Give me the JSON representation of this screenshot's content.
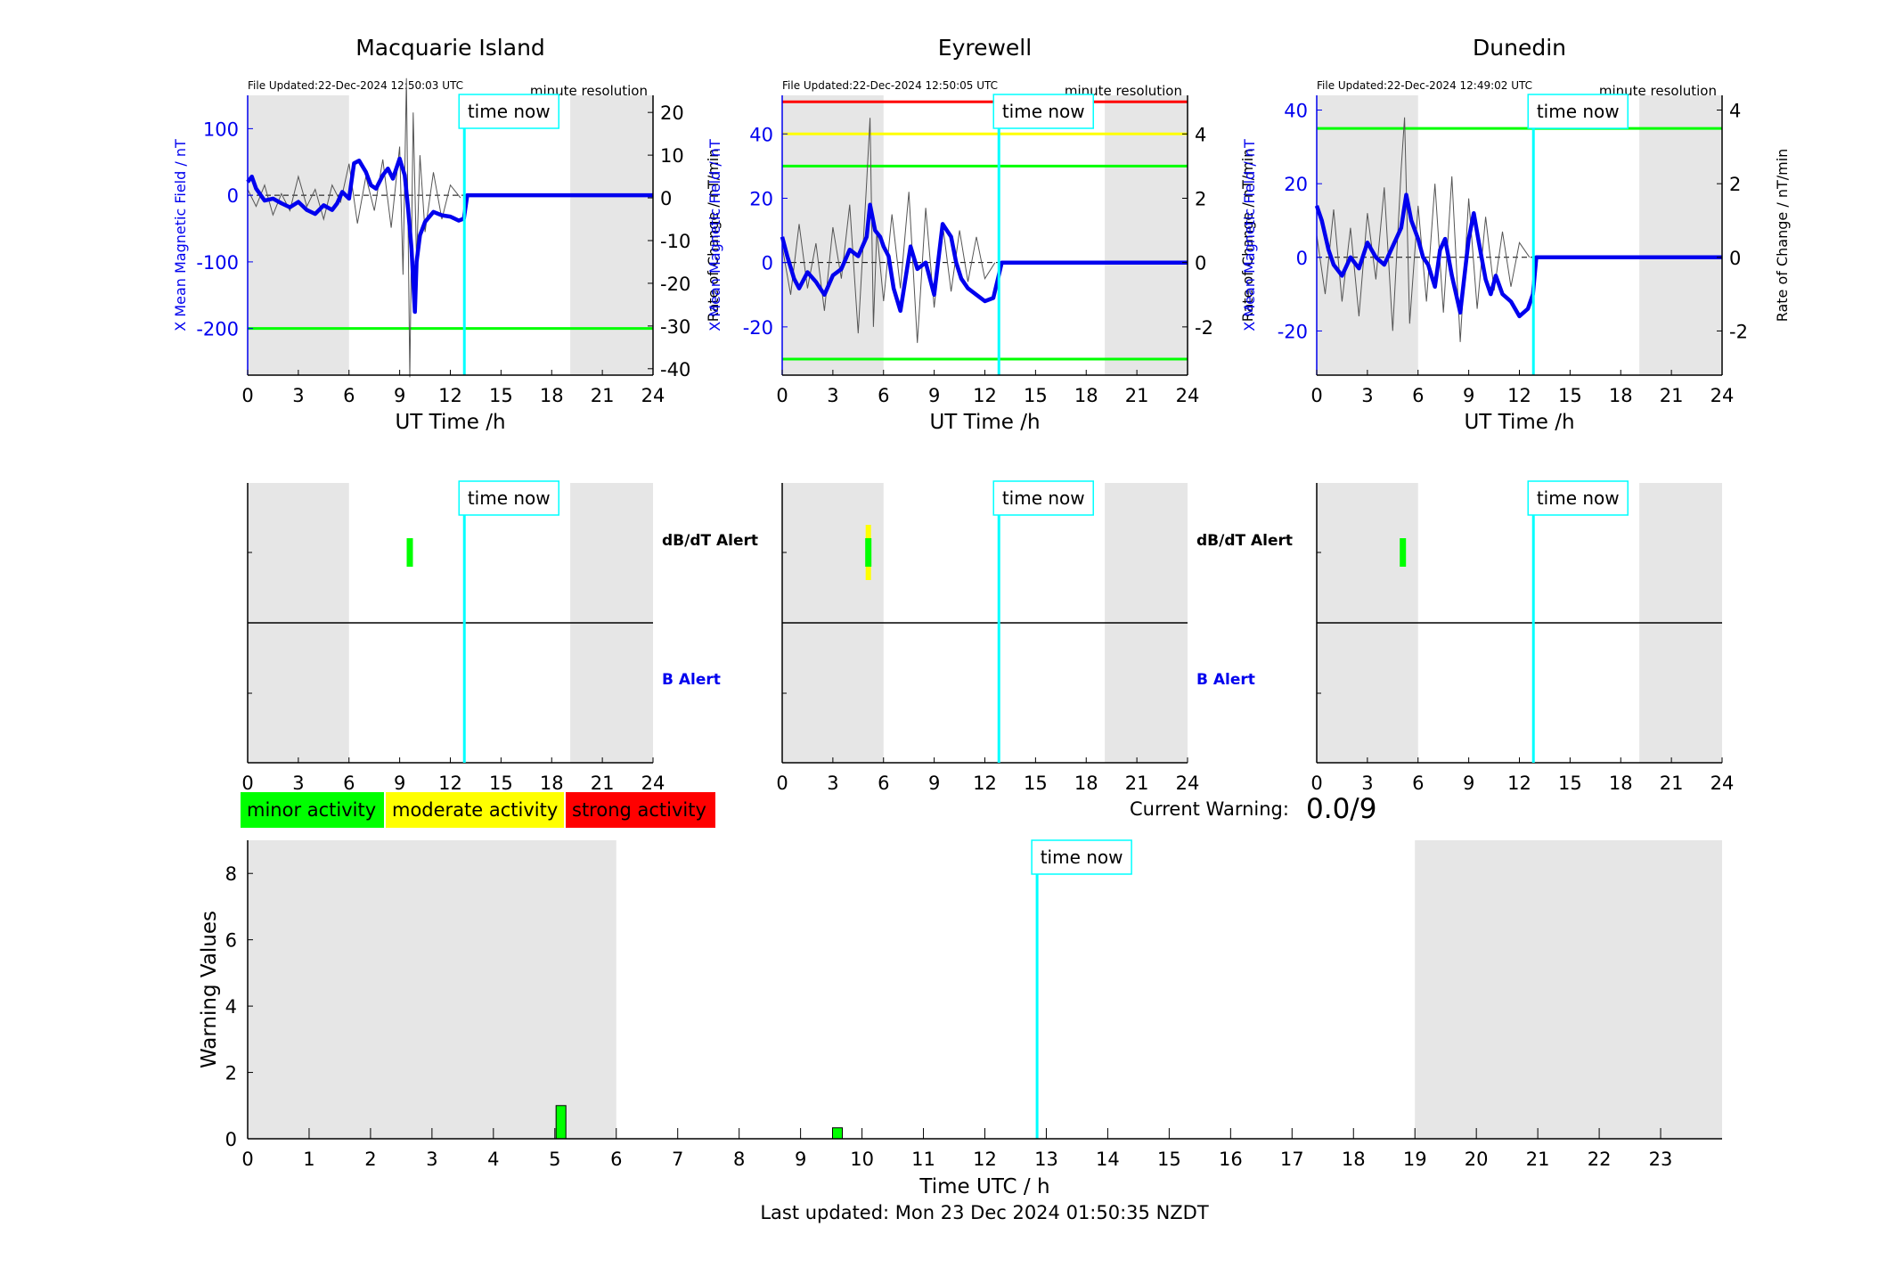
{
  "colors": {
    "blue": "#0000ee",
    "cyan": "#00ffff",
    "green": "#00ff00",
    "yellow": "#ffff00",
    "red": "#ff0000",
    "shade": "#e6e6e6"
  },
  "labels": {
    "time_now": "time now",
    "file_updated_prefix": "File Updated:",
    "minute_resolution": "minute resolution",
    "left_axis_label": "X Mean Magnetic Field / nT",
    "right_axis_label": "Rate of Change / nT/min",
    "x_axis_label": "UT Time /h",
    "dbdt_alert": "dB/dT Alert",
    "b_alert": "B Alert",
    "current_warning_label": "Current Warning:",
    "current_warning_value": "0.0/9",
    "last_updated": "Last updated: Mon 23 Dec 2024 01:50:35 NZDT"
  },
  "legend": [
    {
      "label": "minor activity",
      "color": "#00ff00"
    },
    {
      "label": "moderate activity",
      "color": "#ffff00"
    },
    {
      "label": "strong activity",
      "color": "#ff0000"
    }
  ],
  "chart_data": [
    {
      "type": "line",
      "title": "Macquarie Island",
      "file_updated": "22-Dec-2024 12:50:03 UTC",
      "xlabel": "UT Time /h",
      "ylabel": "X Mean Magnetic Field / nT",
      "y2label": "Rate of Change / nT/min",
      "xlim": [
        0,
        24
      ],
      "ylim": [
        -270,
        150
      ],
      "y2lim": [
        -41.5,
        24
      ],
      "yticks": [
        -200,
        -100,
        0,
        100
      ],
      "y2ticks": [
        -40,
        -30,
        -20,
        -10,
        0,
        10,
        20
      ],
      "xticks": [
        0,
        3,
        6,
        9,
        12,
        15,
        18,
        21,
        24
      ],
      "time_now": 12.83,
      "shaded_hours": [
        [
          0,
          6
        ],
        [
          19.1,
          24
        ]
      ],
      "threshold_lines": [
        {
          "value": -200,
          "color": "#00ff00"
        }
      ],
      "series": [
        {
          "name": "X Mean Magnetic Field",
          "axis": "left",
          "color": "#0000ee",
          "x": [
            0,
            0.25,
            0.5,
            1,
            1.5,
            2,
            2.5,
            3,
            3.5,
            4,
            4.5,
            5,
            5.3,
            5.6,
            6,
            6.3,
            6.6,
            7,
            7.3,
            7.6,
            8,
            8.3,
            8.6,
            9,
            9.3,
            9.5,
            9.7,
            9.9,
            10,
            10.2,
            10.5,
            11,
            11.5,
            12,
            12.5,
            12.8,
            13,
            16,
            20,
            24
          ],
          "values": [
            20,
            28,
            10,
            -8,
            -5,
            -12,
            -18,
            -10,
            -22,
            -28,
            -15,
            -22,
            -12,
            5,
            -5,
            48,
            52,
            35,
            15,
            10,
            30,
            40,
            25,
            55,
            30,
            -20,
            -80,
            -175,
            -100,
            -60,
            -40,
            -25,
            -30,
            -32,
            -38,
            -35,
            0,
            0,
            0,
            0
          ]
        },
        {
          "name": "Rate of Change",
          "axis": "right",
          "color": "#555555",
          "x": [
            0,
            0.5,
            1,
            1.5,
            2,
            2.5,
            3,
            3.5,
            4,
            4.5,
            5,
            5.5,
            6,
            6.5,
            7,
            7.5,
            8,
            8.5,
            9,
            9.2,
            9.4,
            9.6,
            9.8,
            10,
            10.2,
            10.5,
            11,
            11.5,
            12,
            12.6
          ],
          "values": [
            2,
            -2,
            3,
            -4,
            1,
            -3,
            5,
            -2,
            2,
            -5,
            3,
            -1,
            8,
            -6,
            5,
            -3,
            9,
            -7,
            12,
            -18,
            28,
            -42,
            20,
            -15,
            10,
            -8,
            6,
            -5,
            3,
            0
          ]
        }
      ],
      "alerts": {
        "dbdt": [
          {
            "start": 9.5,
            "end": 9.8,
            "color": "#00ff00"
          }
        ],
        "b": []
      }
    },
    {
      "type": "line",
      "title": "Eyrewell",
      "file_updated": "22-Dec-2024 12:50:05 UTC",
      "xlabel": "UT Time /h",
      "ylabel": "X Mean Magnetic Field / nT",
      "y2label": "Rate of Change / nT/min",
      "xlim": [
        0,
        24
      ],
      "ylim": [
        -35,
        52
      ],
      "y2lim": [
        -3.5,
        5.2
      ],
      "yticks": [
        -20,
        0,
        20,
        40
      ],
      "y2ticks": [
        -2,
        0,
        2,
        4
      ],
      "xticks": [
        0,
        3,
        6,
        9,
        12,
        15,
        18,
        21,
        24
      ],
      "time_now": 12.83,
      "shaded_hours": [
        [
          0,
          6
        ],
        [
          19.1,
          24
        ]
      ],
      "threshold_lines": [
        {
          "value": 50,
          "color": "#ff0000"
        },
        {
          "value": 40,
          "color": "#ffff00"
        },
        {
          "value": 30,
          "color": "#00ff00"
        },
        {
          "value": -30,
          "color": "#00ff00"
        }
      ],
      "series": [
        {
          "name": "X Mean Magnetic Field",
          "axis": "left",
          "color": "#0000ee",
          "x": [
            0,
            0.3,
            0.7,
            1,
            1.5,
            2,
            2.5,
            3,
            3.5,
            4,
            4.5,
            5,
            5.2,
            5.5,
            5.8,
            6,
            6.3,
            6.6,
            7,
            7.3,
            7.6,
            8,
            8.5,
            9,
            9.5,
            10,
            10.3,
            10.6,
            11,
            11.5,
            12,
            12.5,
            13,
            16,
            20,
            24
          ],
          "values": [
            8,
            2,
            -5,
            -8,
            -3,
            -6,
            -10,
            -4,
            -2,
            4,
            2,
            8,
            18,
            10,
            8,
            5,
            2,
            -8,
            -15,
            -5,
            5,
            -2,
            0,
            -10,
            12,
            8,
            0,
            -5,
            -8,
            -10,
            -12,
            -11,
            0,
            0,
            0,
            0
          ]
        },
        {
          "name": "Rate of Change",
          "axis": "right",
          "color": "#555555",
          "x": [
            0,
            0.5,
            1,
            1.5,
            2,
            2.5,
            3,
            3.5,
            4,
            4.5,
            5,
            5.2,
            5.4,
            5.6,
            6,
            6.5,
            7,
            7.5,
            8,
            8.5,
            9,
            9.5,
            10,
            10.5,
            11,
            11.5,
            12,
            12.6
          ],
          "values": [
            0.5,
            -1,
            1.2,
            -0.8,
            0.6,
            -1.5,
            1.1,
            -0.5,
            1.8,
            -2.2,
            2.5,
            4.5,
            -2,
            1,
            -1.2,
            1.5,
            -0.8,
            2.2,
            -2.5,
            1.7,
            -1.4,
            1.2,
            -0.9,
            1,
            -0.6,
            0.8,
            -0.5,
            0
          ]
        }
      ],
      "alerts": {
        "dbdt": [
          {
            "start": 5.0,
            "end": 5.3,
            "color": "#ffff00",
            "level": "moderate"
          },
          {
            "start": 5.0,
            "end": 5.3,
            "color": "#00ff00",
            "level": "minor"
          }
        ],
        "b": []
      }
    },
    {
      "type": "line",
      "title": "Dunedin",
      "file_updated": "22-Dec-2024 12:49:02 UTC",
      "xlabel": "UT Time /h",
      "ylabel": "X Mean Magnetic Field / nT",
      "y2label": "Rate of Change / nT/min",
      "xlim": [
        0,
        24
      ],
      "ylim": [
        -32,
        44
      ],
      "y2lim": [
        -3.2,
        4.4
      ],
      "yticks": [
        -20,
        0,
        20,
        40
      ],
      "y2ticks": [
        -2,
        0,
        2,
        4
      ],
      "xticks": [
        0,
        3,
        6,
        9,
        12,
        15,
        18,
        21,
        24
      ],
      "time_now": 12.83,
      "shaded_hours": [
        [
          0,
          6
        ],
        [
          19.1,
          24
        ]
      ],
      "threshold_lines": [
        {
          "value": 35,
          "color": "#00ff00"
        }
      ],
      "series": [
        {
          "name": "X Mean Magnetic Field",
          "axis": "left",
          "color": "#0000ee",
          "x": [
            0,
            0.3,
            0.7,
            1,
            1.5,
            2,
            2.5,
            3,
            3.5,
            4,
            4.5,
            5,
            5.3,
            5.6,
            6,
            6.3,
            6.6,
            7,
            7.3,
            7.6,
            8,
            8.5,
            9,
            9.3,
            9.6,
            10,
            10.3,
            10.6,
            11,
            11.5,
            12,
            12.5,
            12.8,
            13,
            16,
            20,
            24
          ],
          "values": [
            14,
            10,
            2,
            -2,
            -5,
            0,
            -3,
            4,
            0,
            -2,
            3,
            8,
            17,
            10,
            5,
            0,
            -2,
            -8,
            2,
            5,
            -5,
            -15,
            5,
            12,
            4,
            -6,
            -10,
            -5,
            -10,
            -12,
            -16,
            -14,
            -10,
            0,
            0,
            0,
            0
          ]
        },
        {
          "name": "Rate of Change",
          "axis": "right",
          "color": "#555555",
          "x": [
            0,
            0.5,
            1,
            1.5,
            2,
            2.5,
            3,
            3.5,
            4,
            4.5,
            5,
            5.2,
            5.5,
            6,
            6.5,
            7,
            7.5,
            8,
            8.5,
            9,
            9.5,
            10,
            10.5,
            11,
            11.5,
            12,
            12.6
          ],
          "values": [
            0.6,
            -1,
            1.3,
            -1.2,
            0.8,
            -1.6,
            1.2,
            -0.6,
            1.9,
            -2,
            2.4,
            3.8,
            -1.8,
            1.4,
            -1.2,
            2,
            -1.5,
            2.2,
            -2.3,
            1.6,
            -1.4,
            1.1,
            -0.9,
            0.7,
            -0.8,
            0.4,
            0
          ]
        }
      ],
      "alerts": {
        "dbdt": [
          {
            "start": 5.0,
            "end": 5.3,
            "color": "#00ff00"
          }
        ],
        "b": []
      }
    },
    {
      "type": "bar",
      "title": "",
      "xlabel": "Time UTC / h",
      "ylabel": "Warning Values",
      "xlim": [
        0,
        24
      ],
      "ylim": [
        0,
        9
      ],
      "yticks": [
        0,
        2,
        4,
        6,
        8
      ],
      "xticks": [
        0,
        1,
        2,
        3,
        4,
        5,
        6,
        7,
        8,
        9,
        10,
        11,
        12,
        13,
        14,
        15,
        16,
        17,
        18,
        19,
        20,
        21,
        22,
        23
      ],
      "time_now": 12.85,
      "shaded_hours": [
        [
          0,
          6
        ],
        [
          19,
          24
        ]
      ],
      "series": [
        {
          "name": "Warning",
          "color": "#00ff00",
          "x": [
            5.1,
            9.6
          ],
          "width": [
            0.16,
            0.16
          ],
          "values": [
            1,
            0.33
          ]
        }
      ]
    }
  ]
}
